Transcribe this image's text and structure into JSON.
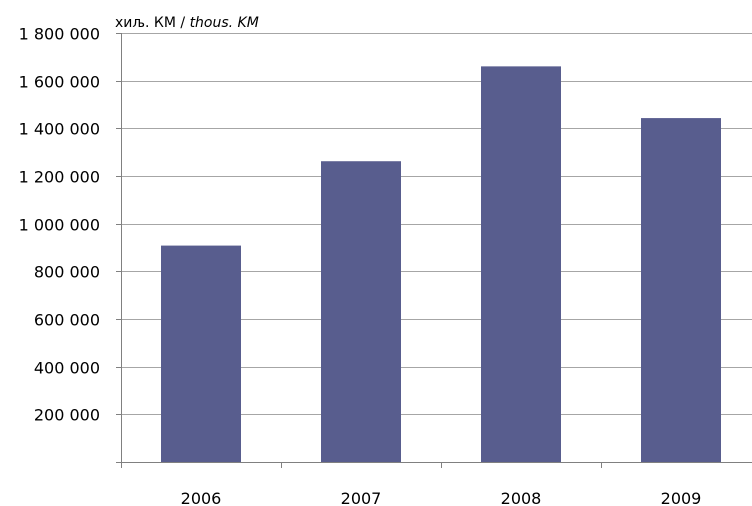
{
  "chart_data": {
    "type": "bar",
    "categories": [
      "2006",
      "2007",
      "2008",
      "2009"
    ],
    "values": [
      908000,
      1262000,
      1660000,
      1443000
    ],
    "title": "",
    "xlabel": "",
    "ylabel": "",
    "unit_label": {
      "prefix": "хиљ. КМ / ",
      "italic": "thous. KM"
    },
    "ylim": [
      0,
      1800000
    ],
    "y_ticks": [
      {
        "value": 200000,
        "label": "200 000"
      },
      {
        "value": 400000,
        "label": "400 000"
      },
      {
        "value": 600000,
        "label": "600 000"
      },
      {
        "value": 800000,
        "label": "800 000"
      },
      {
        "value": 1000000,
        "label": "1 000 000"
      },
      {
        "value": 1200000,
        "label": "1 200 000"
      },
      {
        "value": 1400000,
        "label": "1 400 000"
      },
      {
        "value": 1600000,
        "label": "1 600 000"
      },
      {
        "value": 1800000,
        "label": "1 800 000"
      }
    ],
    "grid": true,
    "bar_color": "#585D8E",
    "grid_color": "#A6A6A6",
    "axis_color": "#808080"
  }
}
